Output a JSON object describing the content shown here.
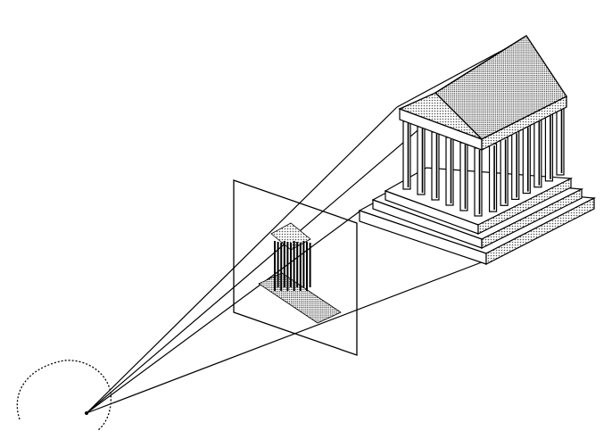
{
  "diagram": {
    "background": "#ffffff",
    "ink": "#000000",
    "stipple": "#555555",
    "elements": [
      "eye",
      "viewpoint",
      "picture-plane",
      "projected-image",
      "temple",
      "projection-lines"
    ]
  }
}
